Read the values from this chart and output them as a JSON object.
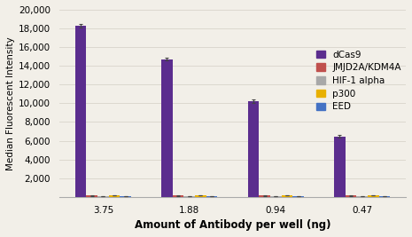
{
  "categories": [
    "3.75",
    "1.88",
    "0.94",
    "0.47"
  ],
  "series": {
    "dCas9": {
      "values": [
        18300,
        14700,
        10200,
        6450
      ],
      "errors": [
        200,
        150,
        200,
        150
      ],
      "color": "#5b2d8e"
    },
    "JMJD2A/KDM4A": {
      "values": [
        130,
        130,
        130,
        130
      ],
      "errors": [
        15,
        15,
        15,
        15
      ],
      "color": "#c0504d"
    },
    "HIF-1 alpha": {
      "values": [
        90,
        90,
        90,
        90
      ],
      "errors": [
        8,
        8,
        8,
        8
      ],
      "color": "#a8a8a8"
    },
    "p300": {
      "values": [
        160,
        160,
        160,
        160
      ],
      "errors": [
        12,
        12,
        12,
        12
      ],
      "color": "#e8b000"
    },
    "EED": {
      "values": [
        110,
        110,
        110,
        110
      ],
      "errors": [
        10,
        10,
        10,
        10
      ],
      "color": "#4472c4"
    }
  },
  "ylabel": "Median Fluorescent Intensity",
  "xlabel": "Amount of Antibody per well (ng)",
  "ylim": [
    0,
    20000
  ],
  "ytick_values": [
    2000,
    4000,
    6000,
    8000,
    10000,
    12000,
    14000,
    16000,
    18000,
    20000
  ],
  "ytick_top": 20000,
  "background_color": "#f2efe8",
  "plot_bg_color": "#f2efe8",
  "bar_width": 0.13,
  "legend_fontsize": 7.5,
  "axis_fontsize": 7.5,
  "label_fontsize": 8.5
}
